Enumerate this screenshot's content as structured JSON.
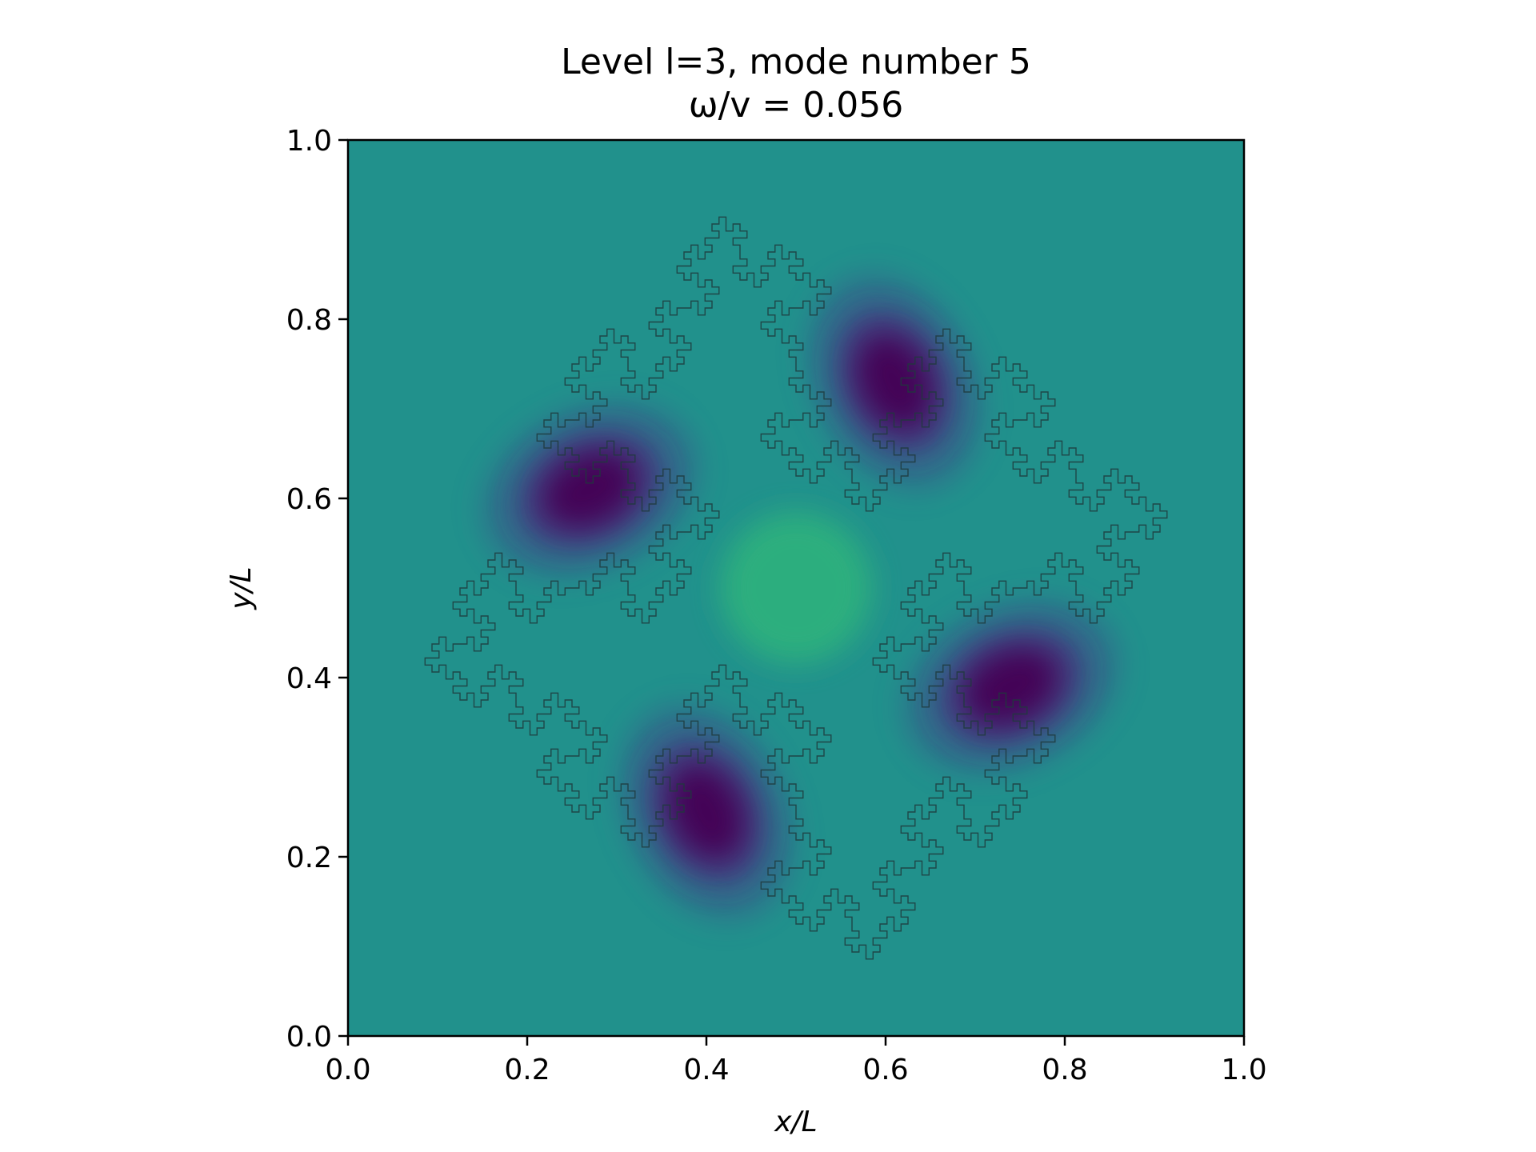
{
  "chart_data": {
    "type": "heatmap",
    "title": "Level l=3, mode number 5",
    "subtitle": "ω/v = 0.056",
    "xlabel": "x/L",
    "ylabel": "y/L",
    "xlim": [
      0.0,
      1.0
    ],
    "ylim": [
      0.0,
      1.0
    ],
    "x_ticks": [
      "0.0",
      "0.2",
      "0.4",
      "0.6",
      "0.8",
      "1.0"
    ],
    "y_ticks": [
      "0.0",
      "0.2",
      "0.4",
      "0.6",
      "0.8",
      "1.0"
    ],
    "colormap": "viridis",
    "background_color": "#21918c",
    "outline": "Minkowski fractal boundary, level 3",
    "minima": [
      {
        "x": 0.27,
        "y": 0.61
      },
      {
        "x": 0.61,
        "y": 0.73
      },
      {
        "x": 0.74,
        "y": 0.39
      },
      {
        "x": 0.4,
        "y": 0.25
      }
    ],
    "center_maximum": {
      "x": 0.5,
      "y": 0.5
    },
    "grid": false
  }
}
